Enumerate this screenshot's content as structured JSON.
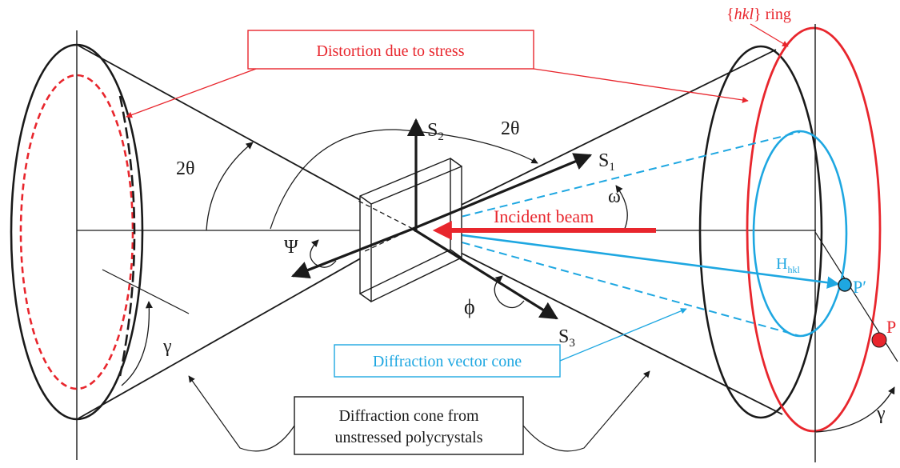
{
  "labels": {
    "hkl_ring_prefix": "{",
    "hkl_ring_italic": "hkl",
    "hkl_ring_suffix": "} ring",
    "distortion_box": "Distortion due to stress",
    "two_theta_left": "2θ",
    "two_theta_top": "2θ",
    "s1_main": "S",
    "s1_sub": "1",
    "s2_main": "S",
    "s2_sub": "2",
    "s3_main": "S",
    "s3_sub": "3",
    "omega": "ω",
    "incident_beam": "Incident beam",
    "psi": "Ψ",
    "phi": "ϕ",
    "h_main": "H",
    "h_sub": "hkl",
    "p_prime": "P′",
    "p": "P",
    "gamma_left": "γ",
    "gamma_right": "γ",
    "diffraction_vector_cone": "Diffraction vector cone",
    "diffraction_cone_line1": "Diffraction cone from",
    "diffraction_cone_line2": "unstressed polycrystals"
  },
  "colors": {
    "red": "#e8262d",
    "blue": "#1ea7e1",
    "black": "#1a1a1a"
  }
}
